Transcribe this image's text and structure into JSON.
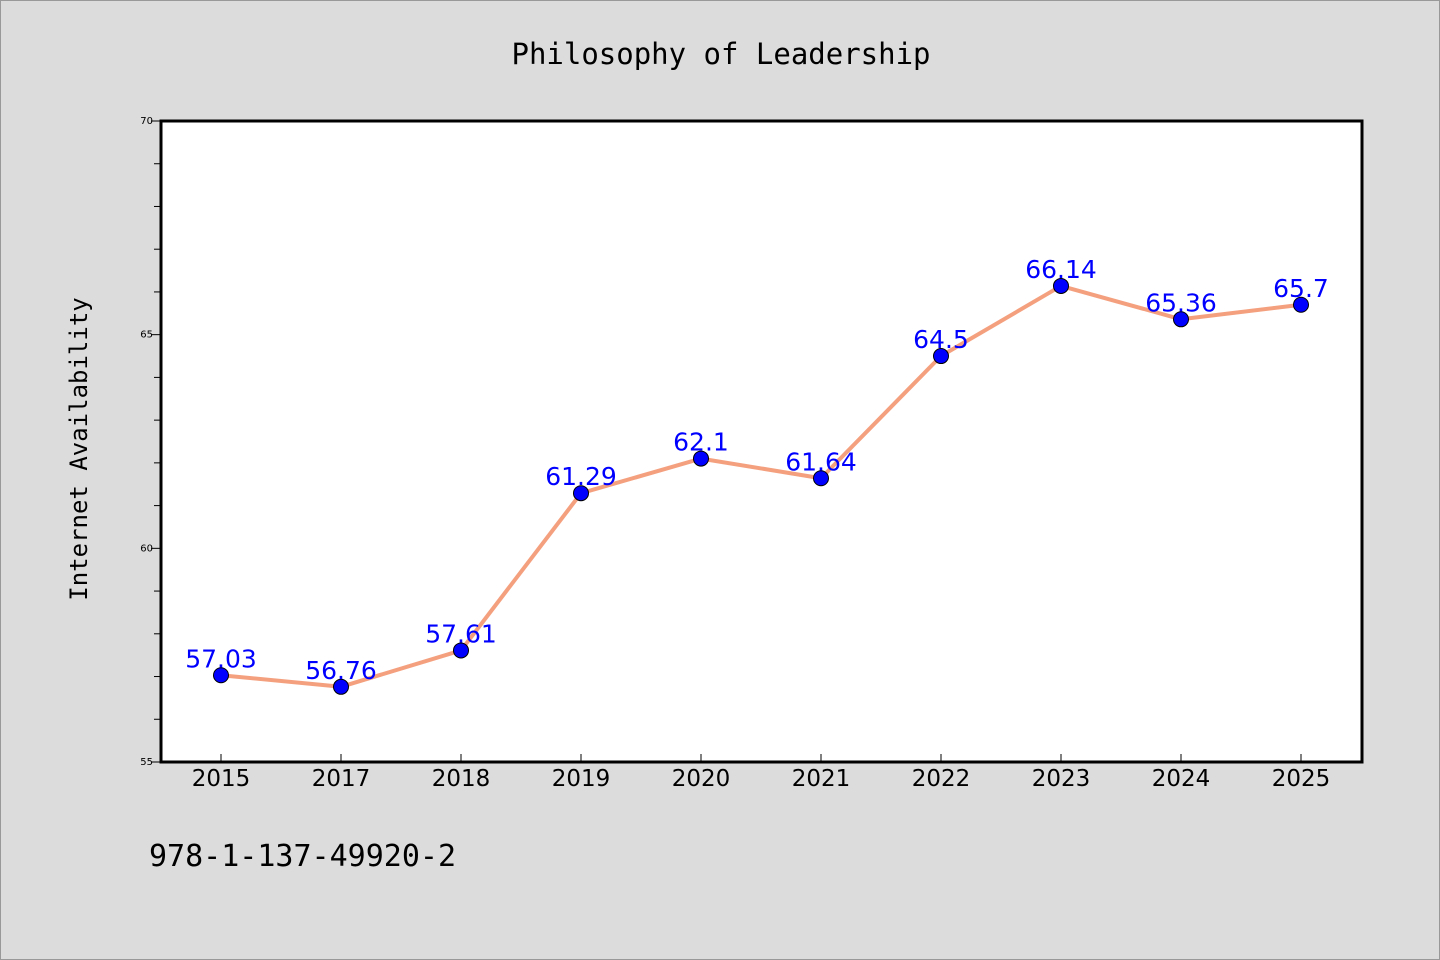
{
  "chart_data": {
    "type": "line",
    "title": "Philosophy of Leadership",
    "xlabel": "",
    "ylabel": "Internet Availability",
    "categories": [
      "2015",
      "2017",
      "2018",
      "2019",
      "2020",
      "2021",
      "2022",
      "2023",
      "2024",
      "2025"
    ],
    "series": [
      {
        "values": [
          57.03,
          56.76,
          57.61,
          61.29,
          62.1,
          61.64,
          64.5,
          66.14,
          65.36,
          65.7
        ],
        "line_color": "#f4a07f",
        "marker_color": "#0000ff",
        "label_color": "#0000ff"
      }
    ],
    "data_labels": [
      "57.03",
      "56.76",
      "57.61",
      "61.29",
      "62.1",
      "61.64",
      "64.5",
      "66.14",
      "65.36",
      "65.7"
    ],
    "ylim": [
      55,
      70
    ],
    "yticks": [
      "55",
      "60",
      "65",
      "70"
    ],
    "grid": false,
    "legend": "none"
  },
  "footer_text": "978-1-137-49920-2",
  "colors": {
    "background": "#dcdcdc",
    "plot_background": "#ffffff"
  }
}
